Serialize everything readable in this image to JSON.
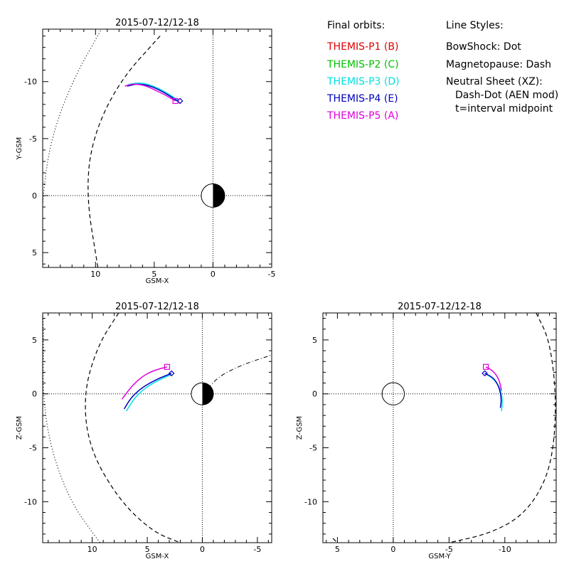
{
  "legend": {
    "orbits_title": "Final orbits:",
    "probes": [
      {
        "label": "THEMIS-P1 (B)",
        "color": "#e00000"
      },
      {
        "label": "THEMIS-P2 (C)",
        "color": "#00c000"
      },
      {
        "label": "THEMIS-P3 (D)",
        "color": "#00e0e0"
      },
      {
        "label": "THEMIS-P4 (E)",
        "color": "#0000c0"
      },
      {
        "label": "THEMIS-P5 (A)",
        "color": "#e000e0"
      }
    ],
    "styles_title": "Line Styles:",
    "styles": [
      "BowShock: Dot",
      "Magnetopause: Dash",
      "Neutral Sheet (XZ):",
      "Dash-Dot (AEN mod)",
      "t=interval midpoint"
    ]
  },
  "chart_data": [
    {
      "type": "line",
      "title": "2015-07-12/12-18",
      "xlabel": "GSM-X",
      "ylabel": "Y-GSM",
      "xlim": [
        14.5,
        -5
      ],
      "ylim": [
        6.3,
        -14.6
      ],
      "xticks": [
        10,
        5,
        0,
        -5
      ],
      "yticks": [
        -10,
        -5,
        0,
        5
      ],
      "xtick_labels": [
        "10",
        "5",
        "0",
        "-5"
      ],
      "ytick_labels": [
        "-10",
        "-5",
        "0",
        "5"
      ],
      "earth": true,
      "bowshock": [
        [
          14.8,
          6.3
        ],
        [
          14.5,
          0
        ],
        [
          13.8,
          -5
        ],
        [
          12.0,
          -10
        ],
        [
          9.5,
          -14.6
        ]
      ],
      "magnetopause": [
        [
          9.8,
          6.3
        ],
        [
          10.8,
          0
        ],
        [
          10.3,
          -5
        ],
        [
          8.0,
          -10
        ],
        [
          4.5,
          -14.0
        ]
      ],
      "series": [
        {
          "name": "THEMIS-P3 (D)",
          "color": "#00e0e0",
          "points": [
            [
              7.3,
              -9.7
            ],
            [
              6.5,
              -9.9
            ],
            [
              5.6,
              -9.8
            ],
            [
              4.6,
              -9.4
            ],
            [
              3.6,
              -8.8
            ],
            [
              2.9,
              -8.3
            ]
          ]
        },
        {
          "name": "THEMIS-P4 (E)",
          "color": "#0000c0",
          "points": [
            [
              7.3,
              -9.6
            ],
            [
              6.5,
              -9.8
            ],
            [
              5.6,
              -9.7
            ],
            [
              4.6,
              -9.3
            ],
            [
              3.6,
              -8.7
            ],
            [
              2.9,
              -8.2
            ]
          ]
        },
        {
          "name": "THEMIS-P5 (A)",
          "color": "#e000e0",
          "points": [
            [
              7.5,
              -9.6
            ],
            [
              6.8,
              -9.8
            ],
            [
              5.9,
              -9.7
            ],
            [
              5.0,
              -9.3
            ],
            [
              4.0,
              -8.8
            ],
            [
              3.2,
              -8.3
            ]
          ]
        }
      ],
      "markers": [
        {
          "shape": "diamond",
          "color": "#0000c0",
          "x": 2.8,
          "y": -8.3
        },
        {
          "shape": "square",
          "color": "#e000e0",
          "x": 3.2,
          "y": -8.3
        }
      ]
    },
    {
      "type": "line",
      "title": "2015-07-12/12-18",
      "xlabel": "GSM-X",
      "ylabel": "Z-GSM",
      "xlim": [
        14.5,
        -6.3
      ],
      "ylim": [
        -13.8,
        7.5
      ],
      "xticks": [
        10,
        5,
        0,
        -5
      ],
      "yticks": [
        5,
        0,
        -5,
        -10
      ],
      "xtick_labels": [
        "10",
        "5",
        "0",
        "-5"
      ],
      "ytick_labels": [
        "5",
        "0",
        "-5",
        "-10"
      ],
      "earth": true,
      "bowshock": [
        [
          14.5,
          7.5
        ],
        [
          14.4,
          5
        ],
        [
          14.5,
          0
        ],
        [
          13.8,
          -5
        ],
        [
          12.0,
          -10
        ],
        [
          9.3,
          -13.8
        ]
      ],
      "magnetopause": [
        [
          7.6,
          7.5
        ],
        [
          9.5,
          4.5
        ],
        [
          10.8,
          0
        ],
        [
          10.3,
          -5
        ],
        [
          7.6,
          -9.8
        ],
        [
          4.5,
          -12.8
        ],
        [
          2.0,
          -13.8
        ]
      ],
      "neutral_sheet": [
        [
          -0.5,
          0.5
        ],
        [
          -1.5,
          1.6
        ],
        [
          -3,
          2.4
        ],
        [
          -4.5,
          3.0
        ],
        [
          -6.3,
          3.6
        ]
      ],
      "series": [
        {
          "name": "THEMIS-P3 (D)",
          "color": "#00e0e0",
          "points": [
            [
              6.9,
              -1.6
            ],
            [
              6.3,
              -0.6
            ],
            [
              5.6,
              0.2
            ],
            [
              4.8,
              0.8
            ],
            [
              3.9,
              1.3
            ],
            [
              2.8,
              1.8
            ]
          ]
        },
        {
          "name": "THEMIS-P4 (E)",
          "color": "#0000c0",
          "points": [
            [
              7.1,
              -1.4
            ],
            [
              6.5,
              -0.4
            ],
            [
              5.7,
              0.4
            ],
            [
              4.8,
              1.0
            ],
            [
              3.8,
              1.5
            ],
            [
              2.8,
              1.9
            ]
          ]
        },
        {
          "name": "THEMIS-P5 (A)",
          "color": "#e000e0",
          "points": [
            [
              7.3,
              -0.5
            ],
            [
              6.5,
              0.6
            ],
            [
              5.6,
              1.5
            ],
            [
              4.6,
              2.1
            ],
            [
              3.6,
              2.4
            ],
            [
              3.2,
              2.5
            ]
          ]
        }
      ],
      "markers": [
        {
          "shape": "diamond",
          "color": "#0000c0",
          "x": 2.8,
          "y": 1.9
        },
        {
          "shape": "square",
          "color": "#e000e0",
          "x": 3.2,
          "y": 2.5
        }
      ]
    },
    {
      "type": "line",
      "title": "2015-07-12/12-18",
      "xlabel": "GSM-Y",
      "ylabel": "Z-GSM",
      "xlim": [
        6.3,
        -14.6
      ],
      "ylim": [
        -13.8,
        7.5
      ],
      "xticks": [
        5,
        0,
        -5,
        -10
      ],
      "yticks": [
        5,
        0,
        -5,
        -10
      ],
      "xtick_labels": [
        "5",
        "0",
        "-5",
        "-10"
      ],
      "ytick_labels": [
        "5",
        "0",
        "-5",
        "-10"
      ],
      "earth": false,
      "earth_circle": true,
      "magnetopause": [
        [
          -12.8,
          7.5
        ],
        [
          -14.0,
          5
        ],
        [
          -14.6,
          0
        ],
        [
          -14.4,
          -5
        ],
        [
          -13.5,
          -8.5
        ],
        [
          -11.5,
          -11.4
        ],
        [
          -8.5,
          -13.0
        ],
        [
          -5.0,
          -13.8
        ]
      ],
      "magnetopause_bottom_left": [
        [
          5.4,
          -13.4
        ],
        [
          5.0,
          -13.8
        ]
      ],
      "series": [
        {
          "name": "THEMIS-P3 (D)",
          "color": "#00e0e0",
          "points": [
            [
              -8.2,
              1.9
            ],
            [
              -9.0,
              1.4
            ],
            [
              -9.6,
              0.5
            ],
            [
              -9.8,
              -0.6
            ],
            [
              -9.7,
              -1.6
            ]
          ]
        },
        {
          "name": "THEMIS-P4 (E)",
          "color": "#0000c0",
          "points": [
            [
              -8.2,
              1.9
            ],
            [
              -9.0,
              1.5
            ],
            [
              -9.5,
              0.6
            ],
            [
              -9.7,
              -0.5
            ],
            [
              -9.6,
              -1.3
            ]
          ]
        },
        {
          "name": "THEMIS-P5 (A)",
          "color": "#e000e0",
          "points": [
            [
              -8.3,
              2.5
            ],
            [
              -9.0,
              2.1
            ],
            [
              -9.5,
              1.3
            ],
            [
              -9.7,
              0.3
            ]
          ]
        }
      ],
      "markers": [
        {
          "shape": "diamond",
          "color": "#0000c0",
          "x": -8.2,
          "y": 1.9
        },
        {
          "shape": "square",
          "color": "#e000e0",
          "x": -8.3,
          "y": 2.5
        }
      ]
    }
  ]
}
